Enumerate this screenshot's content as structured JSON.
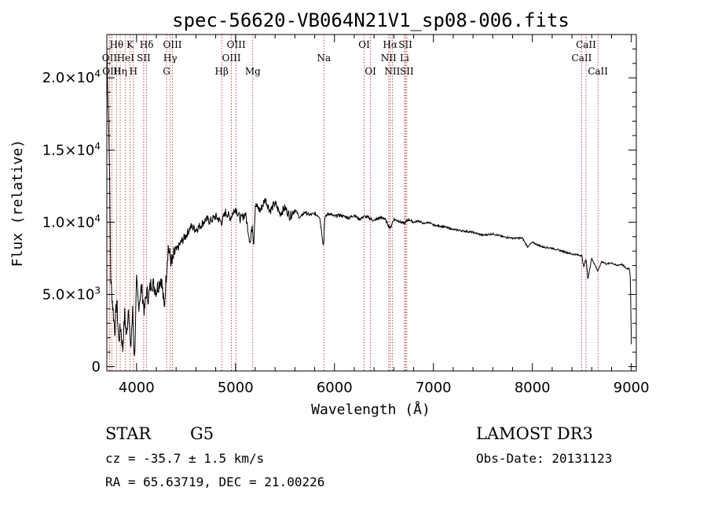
{
  "chart_data": {
    "type": "line",
    "title": "spec-56620-VB064N21V1_sp08-006.fits",
    "xlabel": "Wavelength (Å)",
    "ylabel": "Flux (relative)",
    "xlim": [
      3700,
      9050
    ],
    "ylim": [
      -300,
      23000
    ],
    "xticks": [
      {
        "value": 4000,
        "label": "4000"
      },
      {
        "value": 5000,
        "label": "5000"
      },
      {
        "value": 6000,
        "label": "6000"
      },
      {
        "value": 7000,
        "label": "7000"
      },
      {
        "value": 8000,
        "label": "8000"
      },
      {
        "value": 9000,
        "label": "9000"
      }
    ],
    "yticks": [
      {
        "value": 0,
        "label": "0"
      },
      {
        "value": 5000,
        "label": "5.0×10",
        "exp": "3"
      },
      {
        "value": 10000,
        "label": "1.0×10",
        "exp": "4"
      },
      {
        "value": 15000,
        "label": "1.5×10",
        "exp": "4"
      },
      {
        "value": 20000,
        "label": "2.0×10",
        "exp": "4"
      }
    ],
    "spectrum": {
      "name": "flux",
      "x": [
        3700,
        3725,
        3740,
        3760,
        3780,
        3800,
        3820,
        3840,
        3860,
        3880,
        3900,
        3920,
        3940,
        3960,
        3980,
        4000,
        4020,
        4050,
        4080,
        4100,
        4120,
        4150,
        4200,
        4250,
        4280,
        4300,
        4320,
        4340,
        4360,
        4380,
        4400,
        4450,
        4500,
        4550,
        4600,
        4650,
        4700,
        4750,
        4800,
        4860,
        4900,
        4950,
        5000,
        5050,
        5100,
        5150,
        5170,
        5183,
        5200,
        5250,
        5300,
        5350,
        5400,
        5450,
        5500,
        5550,
        5600,
        5650,
        5700,
        5750,
        5800,
        5850,
        5890,
        5900,
        5920,
        5950,
        6000,
        6050,
        6100,
        6150,
        6200,
        6250,
        6300,
        6350,
        6400,
        6450,
        6500,
        6563,
        6600,
        6650,
        6700,
        6750,
        6800,
        6850,
        6900,
        6950,
        7000,
        7100,
        7200,
        7300,
        7400,
        7500,
        7600,
        7700,
        7800,
        7900,
        7950,
        8000,
        8100,
        8200,
        8300,
        8400,
        8498,
        8520,
        8542,
        8560,
        8600,
        8662,
        8700,
        8750,
        8800,
        8850,
        8900,
        8950,
        8980,
        8990,
        9000
      ],
      "y": [
        22000,
        15000,
        6000,
        4200,
        2500,
        4600,
        1800,
        2800,
        1200,
        3600,
        2000,
        4400,
        1000,
        3800,
        500,
        5800,
        4200,
        5500,
        3800,
        5200,
        4800,
        5900,
        5300,
        6200,
        4000,
        6300,
        8300,
        7600,
        7100,
        7800,
        8000,
        8600,
        9100,
        9700,
        9500,
        9800,
        10200,
        10100,
        10400,
        10000,
        10700,
        10300,
        11000,
        10200,
        10600,
        8500,
        10000,
        8400,
        11200,
        10800,
        11600,
        10800,
        11300,
        10600,
        11000,
        10400,
        10900,
        10300,
        10700,
        10500,
        10600,
        10400,
        8300,
        10200,
        10500,
        10600,
        10400,
        10500,
        10400,
        10300,
        10500,
        10200,
        10400,
        10300,
        10100,
        10300,
        10300,
        9600,
        10200,
        10100,
        9900,
        10200,
        10000,
        10100,
        9900,
        10000,
        9800,
        9700,
        9500,
        9400,
        9300,
        9100,
        9200,
        9000,
        8900,
        8900,
        8300,
        8600,
        8300,
        8200,
        8000,
        7800,
        7700,
        6900,
        7500,
        6100,
        7500,
        6600,
        7300,
        7100,
        7200,
        7000,
        7100,
        6800,
        6800,
        6200,
        1500
      ]
    },
    "lines": [
      {
        "wave": 3727,
        "label": "OII",
        "row": 1
      },
      {
        "wave": 3750,
        "label": "OIII",
        "row": 2
      },
      {
        "wave": 3798,
        "label": "Hθ",
        "row": 0
      },
      {
        "wave": 3835,
        "label": "Hη",
        "row": 2
      },
      {
        "wave": 3889,
        "label": "HeI",
        "row": 1
      },
      {
        "wave": 3934,
        "label": "K",
        "row": 0
      },
      {
        "wave": 3969,
        "label": "H",
        "row": 2
      },
      {
        "wave": 4072,
        "label": "SII",
        "row": 1
      },
      {
        "wave": 4102,
        "label": "Hδ",
        "row": 0
      },
      {
        "wave": 4304,
        "label": "G",
        "row": 2
      },
      {
        "wave": 4341,
        "label": "Hγ",
        "row": 1
      },
      {
        "wave": 4363,
        "label": "OIII",
        "row": 0
      },
      {
        "wave": 4861,
        "label": "Hβ",
        "row": 2
      },
      {
        "wave": 4959,
        "label": "OIII",
        "row": 1
      },
      {
        "wave": 5007,
        "label": "OIII",
        "row": 0
      },
      {
        "wave": 5175,
        "label": "Mg",
        "row": 2
      },
      {
        "wave": 5893,
        "label": "Na",
        "row": 1
      },
      {
        "wave": 6300,
        "label": "OI",
        "row": 0
      },
      {
        "wave": 6364,
        "label": "OI",
        "row": 2
      },
      {
        "wave": 6548,
        "label": "NII",
        "row": 1
      },
      {
        "wave": 6563,
        "label": "Hα",
        "row": 0
      },
      {
        "wave": 6584,
        "label": "NII",
        "row": 2
      },
      {
        "wave": 6708,
        "label": "Li",
        "row": 1
      },
      {
        "wave": 6717,
        "label": "SII",
        "row": 0
      },
      {
        "wave": 6731,
        "label": "SII",
        "row": 2
      },
      {
        "wave": 8498,
        "label": "CaII",
        "row": 1
      },
      {
        "wave": 8542,
        "label": "CaII",
        "row": 0
      },
      {
        "wave": 8662,
        "label": "CaII",
        "row": 2
      }
    ]
  },
  "info": {
    "object_class": "STAR",
    "subclass": "G5",
    "survey": "LAMOST DR3",
    "redshift": "cz = -35.7 ± 1.5 km/s",
    "obs_date": "Obs-Date: 20131123",
    "coords": "RA =  65.63719, DEC =  21.00226"
  }
}
